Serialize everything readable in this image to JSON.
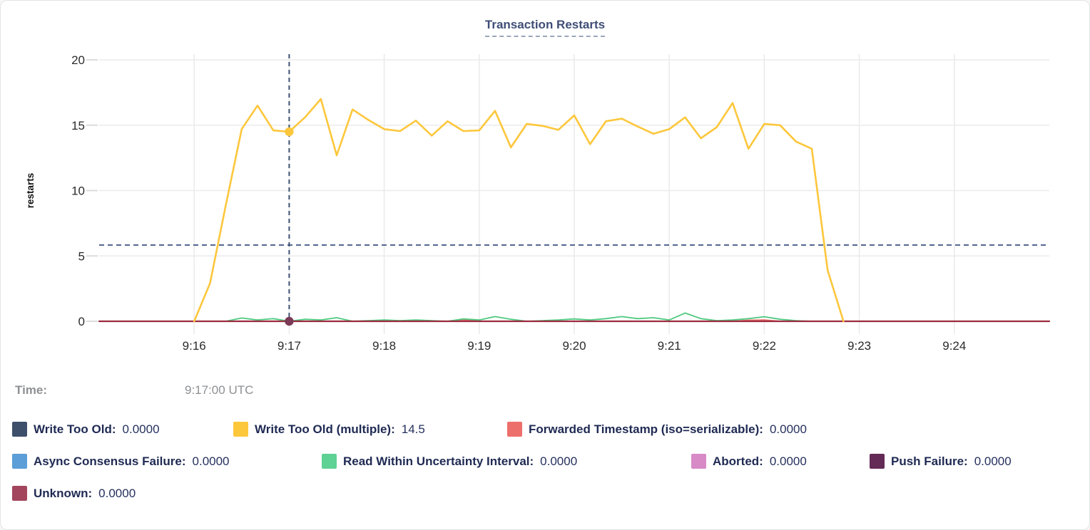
{
  "card": {
    "title": "Transaction Restarts"
  },
  "tooltip": {
    "time_label": "Time:",
    "time_value": "9:17:00 UTC",
    "rows": [
      [
        {
          "key": "write-too-old",
          "label": "Write Too Old:",
          "value": "0.0000",
          "color": "#3e4f6b"
        },
        {
          "key": "write-too-old-multiple",
          "label": "Write Too Old (multiple):",
          "value": "14.5",
          "color": "#fdc73c"
        },
        {
          "key": "forwarded-timestamp",
          "label": "Forwarded Timestamp (iso=serializable):",
          "value": "0.0000",
          "color": "#ed6f6b"
        }
      ],
      [
        {
          "key": "async-consensus-failure",
          "label": "Async Consensus Failure:",
          "value": "0.0000",
          "color": "#5b9ed8"
        },
        {
          "key": "read-within-uncertainty-interval",
          "label": "Read Within Uncertainty Interval:",
          "value": "0.0000",
          "color": "#5ed195"
        },
        {
          "key": "aborted",
          "label": "Aborted:",
          "value": "0.0000",
          "color": "#d78ac6"
        },
        {
          "key": "push-failure",
          "label": "Push Failure:",
          "value": "0.0000",
          "color": "#632b55"
        }
      ],
      [
        {
          "key": "unknown",
          "label": "Unknown:",
          "value": "0.0000",
          "color": "#a3455c"
        }
      ]
    ]
  },
  "chart_data": {
    "type": "line",
    "title": "Transaction Restarts",
    "ylabel": "restarts",
    "ylim": [
      0,
      20
    ],
    "y_ticks": [
      0,
      5,
      10,
      15,
      20
    ],
    "x_ticks": [
      "9:16",
      "9:17",
      "9:18",
      "9:19",
      "9:20",
      "9:21",
      "9:22",
      "9:23",
      "9:24"
    ],
    "x_domain": [
      "9:15:00",
      "9:25:00"
    ],
    "grid": true,
    "threshold_line": {
      "value": 5.83,
      "style": "dashed",
      "color": "#54678f"
    },
    "hover": {
      "time": "9:17:00 UTC",
      "x": "9:17:00",
      "points": [
        {
          "series": "Write Too Old (multiple)",
          "value": 14.5,
          "color": "#fdc73c"
        },
        {
          "series": "Unknown",
          "value": 0,
          "color": "#7a3a55"
        }
      ]
    },
    "series": [
      {
        "name": "Write Too Old",
        "color": "#3e4f6b",
        "x": [
          "9:15:00",
          "9:25:00"
        ],
        "values": [
          0,
          0
        ]
      },
      {
        "name": "Async Consensus Failure",
        "color": "#5b9ed8",
        "x": [
          "9:15:00",
          "9:25:00"
        ],
        "values": [
          0,
          0
        ]
      },
      {
        "name": "Aborted",
        "color": "#d78ac6",
        "x": [
          "9:15:00",
          "9:25:00"
        ],
        "values": [
          0,
          0
        ]
      },
      {
        "name": "Push Failure",
        "color": "#632b55",
        "x": [
          "9:15:00",
          "9:25:00"
        ],
        "values": [
          0,
          0
        ]
      },
      {
        "name": "Forwarded Timestamp (iso=serializable)",
        "color": "#ed6f6b",
        "start": "9:16:00",
        "step_seconds": 10,
        "values": [
          0,
          0,
          0,
          0,
          0,
          0,
          0,
          0,
          0,
          0,
          0,
          0,
          0,
          0,
          0,
          0,
          0,
          0.12,
          0,
          0,
          0,
          0,
          0,
          0,
          0,
          0,
          0,
          0,
          0,
          0,
          0,
          0,
          0,
          0,
          0,
          0.08,
          0.1,
          0,
          0,
          0,
          0,
          0
        ]
      },
      {
        "name": "Read Within Uncertainty Interval",
        "color": "#4fc87f",
        "start": "9:16:20",
        "step_seconds": 10,
        "values": [
          0,
          0.25,
          0.1,
          0.2,
          0,
          0.15,
          0.1,
          0.27,
          0,
          0.05,
          0.1,
          0.05,
          0.1,
          0.05,
          0,
          0.18,
          0.1,
          0.36,
          0.15,
          0,
          0.05,
          0.1,
          0.18,
          0.1,
          0.2,
          0.36,
          0.2,
          0.27,
          0.1,
          0.63,
          0.2,
          0.05,
          0.1,
          0.2,
          0.35,
          0.15,
          0.05,
          0,
          0
        ]
      },
      {
        "name": "Unknown",
        "color": "#9b2b3f",
        "x": [
          "9:15:00",
          "9:25:00"
        ],
        "values": [
          0,
          0
        ]
      },
      {
        "name": "Write Too Old (multiple)",
        "color": "#fdc73c",
        "start": "9:16:00",
        "step_seconds": 10,
        "values": [
          0,
          2.9,
          8.9,
          14.7,
          16.5,
          14.6,
          14.5,
          15.6,
          17.0,
          12.7,
          16.2,
          15.4,
          14.7,
          14.55,
          15.35,
          14.2,
          15.3,
          14.55,
          14.6,
          16.1,
          13.3,
          15.1,
          14.95,
          14.65,
          15.75,
          13.55,
          15.3,
          15.5,
          14.9,
          14.35,
          14.7,
          15.6,
          14.0,
          14.85,
          16.7,
          13.2,
          15.1,
          15.0,
          13.75,
          13.2,
          3.9,
          0
        ]
      }
    ]
  }
}
